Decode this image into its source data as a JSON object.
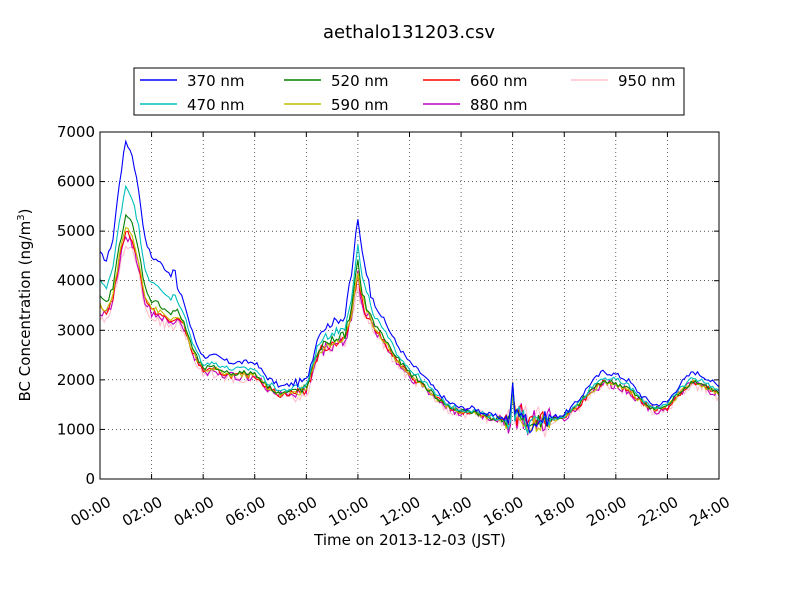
{
  "chart_data": {
    "type": "line",
    "title": "aethalo131203.csv",
    "xlabel": "Time on 2013-12-03 (JST)",
    "ylabel": "BC Concentration (ng/m",
    "ylabel_sup": "3",
    "ylabel_close": ")",
    "xlim": [
      0,
      24
    ],
    "ylim": [
      0,
      7000
    ],
    "x_ticks": [
      0,
      2,
      4,
      6,
      8,
      10,
      12,
      14,
      16,
      18,
      20,
      22,
      24
    ],
    "x_tick_labels": [
      "00:00",
      "02:00",
      "04:00",
      "06:00",
      "08:00",
      "10:00",
      "12:00",
      "14:00",
      "16:00",
      "18:00",
      "20:00",
      "22:00",
      "24:00"
    ],
    "y_ticks": [
      0,
      1000,
      2000,
      3000,
      4000,
      5000,
      6000,
      7000
    ],
    "y_tick_labels": [
      "0",
      "1000",
      "2000",
      "3000",
      "4000",
      "5000",
      "6000",
      "7000"
    ],
    "grid": true,
    "legend_position": "top-center",
    "base_profile": {
      "x": [
        0,
        0.25,
        0.5,
        0.75,
        1.0,
        1.25,
        1.5,
        1.75,
        2.0,
        2.25,
        2.5,
        2.75,
        3.0,
        3.25,
        3.5,
        3.75,
        4.0,
        4.5,
        5.0,
        5.5,
        6.0,
        6.5,
        7.0,
        7.5,
        8.0,
        8.5,
        9.0,
        9.25,
        9.5,
        9.75,
        9.9,
        10.0,
        10.1,
        10.3,
        10.6,
        11.0,
        11.5,
        12.0,
        12.5,
        13.0,
        13.5,
        14.0,
        14.5,
        15.0,
        15.5,
        15.9,
        16.0,
        16.1,
        16.3,
        16.6,
        17.0,
        17.5,
        18.0,
        18.5,
        19.0,
        19.5,
        20.0,
        20.5,
        21.0,
        21.5,
        22.0,
        22.5,
        23.0,
        23.5,
        24.0
      ],
      "y": [
        3500,
        3400,
        3700,
        4500,
        5100,
        4900,
        4400,
        3700,
        3450,
        3400,
        3300,
        3200,
        3300,
        3100,
        2700,
        2400,
        2200,
        2200,
        2100,
        2100,
        2100,
        1850,
        1700,
        1750,
        1800,
        2600,
        2750,
        2800,
        2850,
        3300,
        3900,
        4200,
        3800,
        3400,
        3100,
        2800,
        2400,
        2100,
        1900,
        1650,
        1450,
        1350,
        1350,
        1250,
        1200,
        1150,
        1750,
        1200,
        1350,
        1050,
        1150,
        1200,
        1250,
        1450,
        1750,
        1950,
        1900,
        1800,
        1550,
        1400,
        1450,
        1750,
        1950,
        1850,
        1700
      ]
    },
    "series": [
      {
        "name": "370 nm",
        "color": "#0000ff",
        "factor": 1.16,
        "bump": 0.42,
        "noise": 50
      },
      {
        "name": "470 nm",
        "color": "#00bfbf",
        "factor": 1.07,
        "bump": 0.2,
        "noise": 50
      },
      {
        "name": "520 nm",
        "color": "#008000",
        "factor": 1.02,
        "bump": 0.06,
        "noise": 55
      },
      {
        "name": "590 nm",
        "color": "#bfbf00",
        "factor": 1.0,
        "bump": 0.0,
        "noise": 55
      },
      {
        "name": "660 nm",
        "color": "#ff0000",
        "factor": 1.0,
        "bump": -0.02,
        "noise": 60
      },
      {
        "name": "880 nm",
        "color": "#bf00bf",
        "factor": 1.0,
        "bump": -0.04,
        "noise": 90
      },
      {
        "name": "950 nm",
        "color": "#ffc0cb",
        "factor": 0.96,
        "bump": -0.08,
        "noise": 110
      }
    ]
  }
}
